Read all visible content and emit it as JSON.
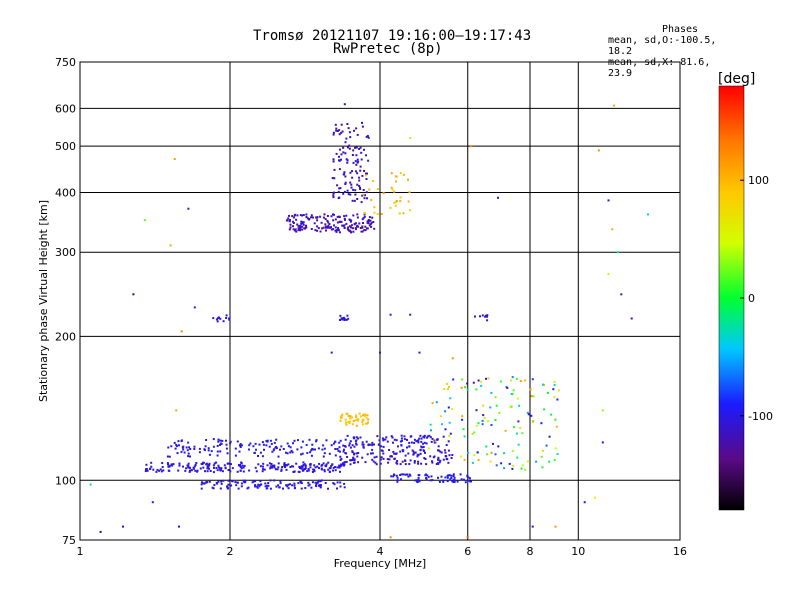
{
  "header": {
    "title_line1": "Tromsø 20121107 19:16:00–19:17:43",
    "title_line2": "RwPretec (8p)"
  },
  "phase_box": {
    "heading": "Phases",
    "line1": "mean, sd,O:-100.5, 18.2",
    "line2": "mean, sd,X:  81.6, 23.9"
  },
  "chart_data": {
    "type": "scatter",
    "xlabel": "Frequency [MHz]",
    "ylabel": "Stationary phase Virtual Height [km]",
    "x_scale": "log",
    "y_scale": "log",
    "xlim": [
      1,
      16
    ],
    "ylim": [
      75,
      750
    ],
    "x_ticks": [
      1,
      2,
      4,
      6,
      8,
      10,
      16
    ],
    "x_ticklabels": [
      "1",
      "2",
      "4",
      "6",
      "8",
      "10",
      "16"
    ],
    "x_gridlines": [
      2,
      4,
      6,
      8,
      10
    ],
    "y_ticks": [
      75,
      100,
      200,
      300,
      400,
      500,
      600,
      750
    ],
    "y_ticklabels": [
      "75",
      "100",
      "200",
      "300",
      "400",
      "500",
      "600",
      "750"
    ],
    "y_gridlines": [
      100,
      200,
      300,
      400,
      500,
      600
    ],
    "grid": true,
    "colorbar": {
      "unit": "[deg]",
      "range": [
        -180,
        180
      ],
      "ticks": [
        -100,
        0,
        100
      ],
      "ticklabels": [
        "-100",
        "0",
        "100"
      ],
      "colormap": [
        "#000000",
        "#5a0a86",
        "#1b1bff",
        "#00c8ff",
        "#00ff30",
        "#d2ff00",
        "#ffc800",
        "#ff7800",
        "#ff0000"
      ]
    },
    "clusters": [
      {
        "name": "E-layer O trace",
        "x": [
          1.35,
          3.4
        ],
        "y": [
          104,
          109
        ],
        "phase": [
          -110,
          -95
        ],
        "n": 230
      },
      {
        "name": "E-layer upper trace",
        "x": [
          1.5,
          3.5
        ],
        "y": [
          112,
          122
        ],
        "phase": [
          -110,
          -85
        ],
        "n": 150
      },
      {
        "name": "E-layer lower trace",
        "x": [
          1.75,
          3.4
        ],
        "y": [
          96,
          100
        ],
        "phase": [
          -110,
          -90
        ],
        "n": 120
      },
      {
        "name": "Es trace",
        "x": [
          3.3,
          5.6
        ],
        "y": [
          108,
          116
        ],
        "phase": [
          -120,
          -95
        ],
        "n": 130
      },
      {
        "name": "Es upper",
        "x": [
          3.4,
          5.5
        ],
        "y": [
          117,
          124
        ],
        "phase": [
          -115,
          -90
        ],
        "n": 100
      },
      {
        "name": "lower trace 4-6 MHz",
        "x": [
          4.2,
          6.1
        ],
        "y": [
          99,
          103
        ],
        "phase": [
          -110,
          -85
        ],
        "n": 70
      },
      {
        "name": "X mode patch",
        "x": [
          3.3,
          3.8
        ],
        "y": [
          130,
          138
        ],
        "phase": [
          80,
          110
        ],
        "n": 50
      },
      {
        "name": "scattered 5-9 MHz",
        "x": [
          5.0,
          9.2
        ],
        "y": [
          105,
          165
        ],
        "phase": [
          -120,
          120
        ],
        "n": 140
      },
      {
        "name": "F-layer O trace",
        "x": [
          2.6,
          3.9
        ],
        "y": [
          330,
          360
        ],
        "phase": [
          -135,
          -100
        ],
        "n": 180
      },
      {
        "name": "F cusp",
        "x": [
          3.2,
          3.8
        ],
        "y": [
          380,
          560
        ],
        "phase": [
          -130,
          -95
        ],
        "n": 120
      },
      {
        "name": "F-layer X trace",
        "x": [
          3.7,
          4.6
        ],
        "y": [
          360,
          440
        ],
        "phase": [
          80,
          115
        ],
        "n": 35
      },
      {
        "name": "220 km trace left",
        "x": [
          1.85,
          2.0
        ],
        "y": [
          212,
          222
        ],
        "phase": [
          -110,
          -95
        ],
        "n": 12
      },
      {
        "name": "220 km trace mid",
        "x": [
          3.3,
          3.5
        ],
        "y": [
          216,
          222
        ],
        "phase": [
          -110,
          -95
        ],
        "n": 12
      },
      {
        "name": "220 km trace right",
        "x": [
          6.2,
          6.6
        ],
        "y": [
          216,
          222
        ],
        "phase": [
          -110,
          -95
        ],
        "n": 8
      }
    ],
    "scattered_points": [
      {
        "x": 1.05,
        "y": 98,
        "phase": -20
      },
      {
        "x": 1.1,
        "y": 78,
        "phase": -150
      },
      {
        "x": 1.22,
        "y": 80,
        "phase": -110
      },
      {
        "x": 1.28,
        "y": 245,
        "phase": -150
      },
      {
        "x": 1.35,
        "y": 350,
        "phase": 20
      },
      {
        "x": 1.4,
        "y": 90,
        "phase": -90
      },
      {
        "x": 1.52,
        "y": 310,
        "phase": 110
      },
      {
        "x": 1.55,
        "y": 470,
        "phase": 110
      },
      {
        "x": 1.6,
        "y": 205,
        "phase": 130
      },
      {
        "x": 1.65,
        "y": 370,
        "phase": -120
      },
      {
        "x": 1.7,
        "y": 230,
        "phase": -90
      },
      {
        "x": 1.58,
        "y": 80,
        "phase": -110
      },
      {
        "x": 1.56,
        "y": 140,
        "phase": 110
      },
      {
        "x": 3.2,
        "y": 185,
        "phase": -110
      },
      {
        "x": 4.0,
        "y": 185,
        "phase": -110
      },
      {
        "x": 4.2,
        "y": 222,
        "phase": -90
      },
      {
        "x": 4.6,
        "y": 222,
        "phase": -110
      },
      {
        "x": 4.8,
        "y": 185,
        "phase": -100
      },
      {
        "x": 5.6,
        "y": 180,
        "phase": 120
      },
      {
        "x": 4.6,
        "y": 520,
        "phase": 40
      },
      {
        "x": 6.1,
        "y": 500,
        "phase": 130
      },
      {
        "x": 6.9,
        "y": 390,
        "phase": -110
      },
      {
        "x": 11.0,
        "y": 490,
        "phase": 120
      },
      {
        "x": 11.5,
        "y": 270,
        "phase": 40
      },
      {
        "x": 11.5,
        "y": 385,
        "phase": -100
      },
      {
        "x": 11.7,
        "y": 335,
        "phase": 110
      },
      {
        "x": 11.8,
        "y": 608,
        "phase": 110
      },
      {
        "x": 12.0,
        "y": 300,
        "phase": -10
      },
      {
        "x": 12.2,
        "y": 245,
        "phase": -120
      },
      {
        "x": 12.8,
        "y": 218,
        "phase": -120
      },
      {
        "x": 13.8,
        "y": 360,
        "phase": -40
      },
      {
        "x": 11.2,
        "y": 140,
        "phase": 30
      },
      {
        "x": 10.3,
        "y": 90,
        "phase": -100
      },
      {
        "x": 10.8,
        "y": 92,
        "phase": 60
      },
      {
        "x": 11.2,
        "y": 120,
        "phase": -100
      },
      {
        "x": 3.4,
        "y": 612,
        "phase": -130
      },
      {
        "x": 8.1,
        "y": 80,
        "phase": -110
      },
      {
        "x": 9.0,
        "y": 80,
        "phase": 120
      },
      {
        "x": 4.2,
        "y": 76,
        "phase": 130
      },
      {
        "x": 6.0,
        "y": 76,
        "phase": 150
      }
    ]
  }
}
